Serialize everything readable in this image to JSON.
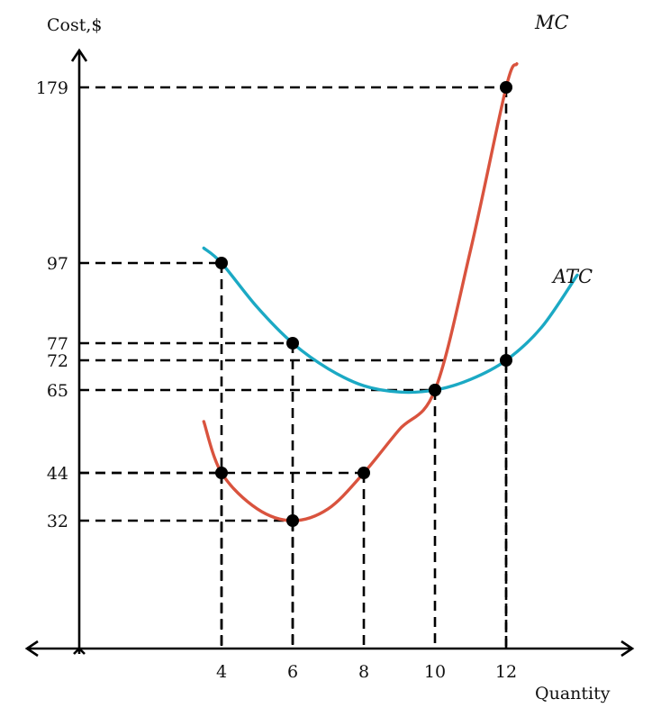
{
  "chart_data": {
    "type": "line",
    "xlabel": "Quantity",
    "ylabel": "Cost,$",
    "x_ticks": [
      4,
      6,
      8,
      10,
      12
    ],
    "y_ticks": [
      32,
      44,
      65,
      72,
      77,
      97,
      179
    ],
    "series": [
      {
        "name": "MC",
        "color": "#d9533e",
        "points": [
          [
            3.5,
            57
          ],
          [
            4,
            44
          ],
          [
            5,
            35
          ],
          [
            6,
            32
          ],
          [
            7,
            35
          ],
          [
            8,
            44
          ],
          [
            9,
            55
          ],
          [
            10,
            65
          ],
          [
            11,
            103
          ],
          [
            12,
            179
          ],
          [
            12.3,
            190
          ]
        ],
        "markers": [
          [
            4,
            44
          ],
          [
            6,
            32
          ],
          [
            8,
            44
          ],
          [
            10,
            65
          ],
          [
            12,
            179
          ]
        ]
      },
      {
        "name": "ATC",
        "color": "#1ba9c4",
        "points": [
          [
            3.5,
            104
          ],
          [
            4,
            97
          ],
          [
            5,
            86
          ],
          [
            6,
            77
          ],
          [
            7,
            70
          ],
          [
            8,
            66
          ],
          [
            9,
            64.5
          ],
          [
            10,
            65
          ],
          [
            11,
            67.5
          ],
          [
            12,
            72
          ],
          [
            13,
            81
          ],
          [
            14,
            94
          ]
        ],
        "markers": [
          [
            4,
            97
          ],
          [
            6,
            77
          ],
          [
            10,
            65
          ],
          [
            12,
            72
          ]
        ]
      }
    ],
    "guides": [
      [
        4,
        97
      ],
      [
        6,
        77
      ],
      [
        4,
        44
      ],
      [
        8,
        44
      ],
      [
        6,
        32
      ],
      [
        10,
        65
      ],
      [
        12,
        179
      ],
      [
        12,
        72
      ]
    ]
  }
}
